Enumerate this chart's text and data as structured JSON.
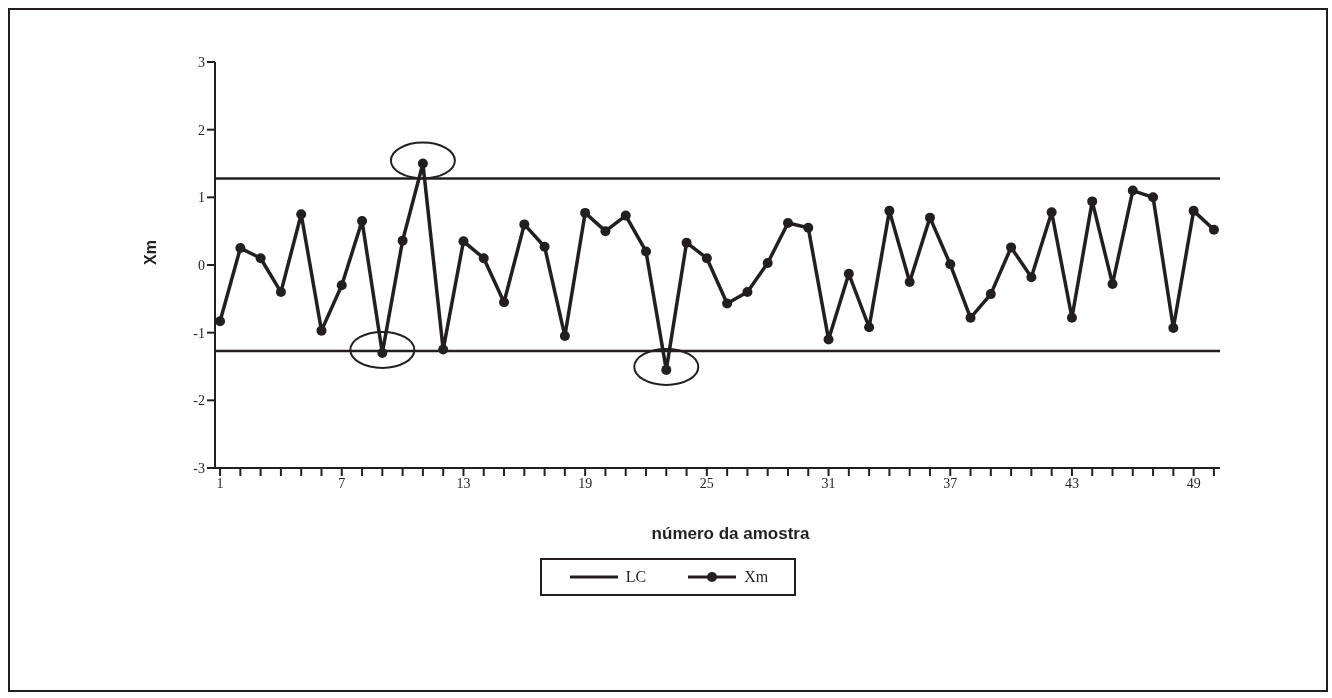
{
  "chart_data": {
    "type": "line",
    "xlabel": "número da amostra",
    "ylabel": "Xm",
    "x": [
      1,
      2,
      3,
      4,
      5,
      6,
      7,
      8,
      9,
      10,
      11,
      12,
      13,
      14,
      15,
      16,
      17,
      18,
      19,
      20,
      21,
      22,
      23,
      24,
      25,
      26,
      27,
      28,
      29,
      30,
      31,
      32,
      33,
      34,
      35,
      36,
      37,
      38,
      39,
      40,
      41,
      42,
      43,
      44,
      45,
      46,
      47,
      48,
      49,
      50
    ],
    "series": [
      {
        "name": "Xm",
        "color": "#231f20",
        "values": [
          -0.83,
          0.25,
          0.1,
          -0.4,
          0.75,
          -0.97,
          -0.3,
          0.65,
          -1.3,
          0.36,
          1.5,
          -1.25,
          0.35,
          0.1,
          -0.55,
          0.6,
          0.27,
          -1.05,
          0.77,
          0.5,
          0.73,
          0.2,
          -1.55,
          0.33,
          0.1,
          -0.57,
          -0.4,
          0.03,
          0.62,
          0.55,
          -1.1,
          -0.13,
          -0.92,
          0.8,
          -0.25,
          0.7,
          0.01,
          -0.78,
          -0.43,
          0.26,
          -0.18,
          0.78,
          -0.78,
          0.94,
          -0.28,
          1.1,
          1.0,
          -0.93,
          0.8,
          0.52
        ]
      }
    ],
    "ref_lines": [
      {
        "axis": "y",
        "value": 1.28,
        "label": "LC",
        "color": "#231f20",
        "line_style": "solid"
      },
      {
        "axis": "y",
        "value": -1.27,
        "color": "#231f20",
        "line_style": "solid"
      }
    ],
    "xlim": [
      0.75,
      50.3
    ],
    "xticks": [
      1,
      {
        "value": 2,
        "label": null
      },
      {
        "value": 3,
        "label": null
      },
      {
        "value": 4,
        "label": null
      },
      {
        "value": 5,
        "label": null
      },
      {
        "value": 6,
        "label": null
      },
      7,
      {
        "value": 8,
        "label": null
      },
      {
        "value": 9,
        "label": null
      },
      {
        "value": 10,
        "label": null
      },
      {
        "value": 11,
        "label": null
      },
      {
        "value": 12,
        "label": null
      },
      13,
      {
        "value": 14,
        "label": null
      },
      {
        "value": 15,
        "label": null
      },
      {
        "value": 16,
        "label": null
      },
      {
        "value": 17,
        "label": null
      },
      {
        "value": 18,
        "label": null
      },
      19,
      {
        "value": 20,
        "label": null
      },
      {
        "value": 21,
        "label": null
      },
      {
        "value": 22,
        "label": null
      },
      {
        "value": 23,
        "label": null
      },
      {
        "value": 24,
        "label": null
      },
      25,
      {
        "value": 26,
        "label": null
      },
      {
        "value": 27,
        "label": null
      },
      {
        "value": 28,
        "label": null
      },
      {
        "value": 29,
        "label": null
      },
      {
        "value": 30,
        "label": null
      },
      31,
      {
        "value": 32,
        "label": null
      },
      {
        "value": 33,
        "label": null
      },
      {
        "value": 34,
        "label": null
      },
      {
        "value": 35,
        "label": null
      },
      {
        "value": 36,
        "label": null
      },
      37,
      {
        "value": 38,
        "label": null
      },
      {
        "value": 39,
        "label": null
      },
      {
        "value": 40,
        "label": null
      },
      {
        "value": 41,
        "label": null
      },
      {
        "value": 42,
        "label": null
      },
      43,
      {
        "value": 44,
        "label": null
      },
      {
        "value": 45,
        "label": null
      },
      {
        "value": 46,
        "label": null
      },
      {
        "value": 47,
        "label": null
      },
      {
        "value": 48,
        "label": null
      },
      49,
      {
        "value": 50,
        "label": null
      }
    ],
    "ylim": [
      -3,
      3
    ],
    "yticks": [
      -3,
      -2,
      -1,
      0,
      1,
      2,
      3
    ],
    "legend": "bottom",
    "marker": "circle",
    "line_style": "solid"
  }
}
